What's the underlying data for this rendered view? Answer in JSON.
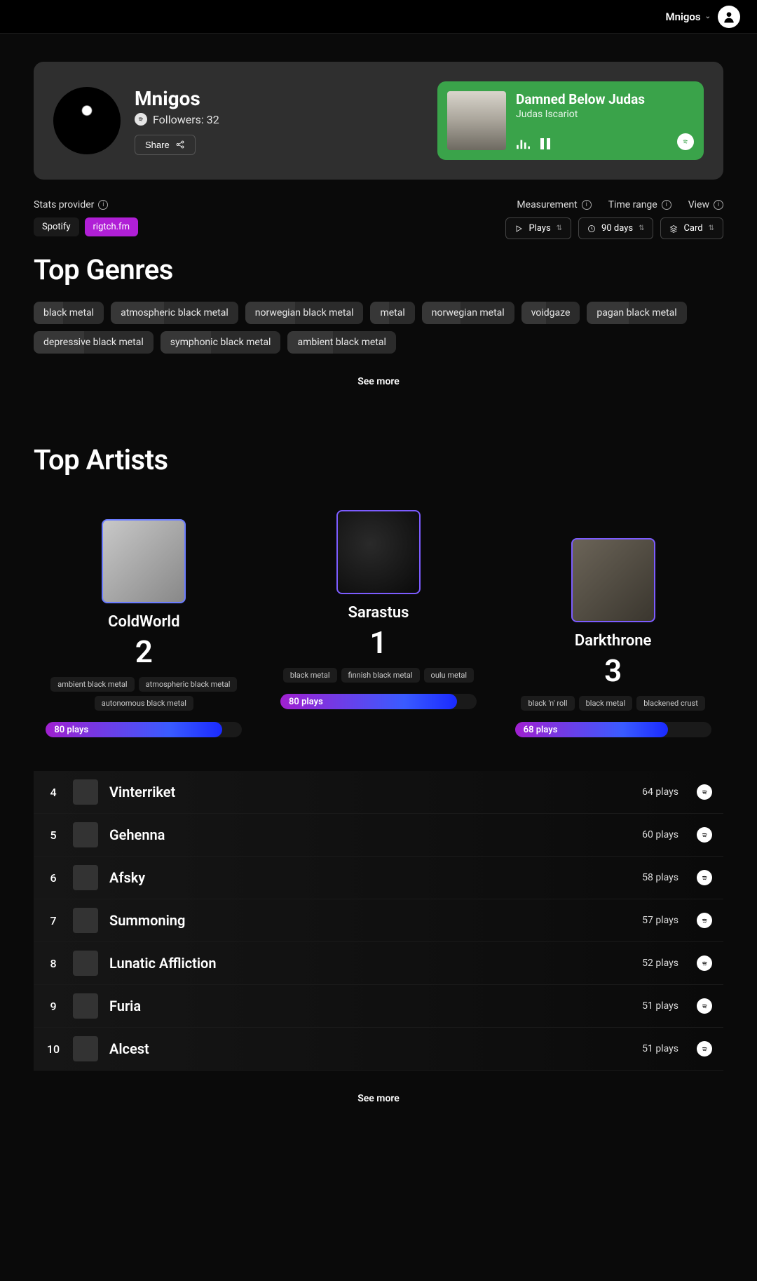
{
  "topbar": {
    "username": "Mnigos"
  },
  "profile": {
    "name": "Mnigos",
    "followers_label": "Followers: 32",
    "share_label": "Share"
  },
  "now_playing": {
    "title": "Damned Below Judas",
    "artist": "Judas Iscariot",
    "accent": "#3aa34a"
  },
  "controls": {
    "stats_provider_label": "Stats provider",
    "providers": [
      {
        "label": "Spotify",
        "active": false
      },
      {
        "label": "rigtch.fm",
        "active": true
      }
    ],
    "measurement_label": "Measurement",
    "time_range_label": "Time range",
    "view_label": "View",
    "measurement_value": "Plays",
    "time_range_value": "90 days",
    "view_value": "Card"
  },
  "top_genres": {
    "title": "Top Genres",
    "items": [
      "black metal",
      "atmospheric black metal",
      "norwegian black metal",
      "metal",
      "norwegian metal",
      "voidgaze",
      "pagan black metal",
      "depressive black metal",
      "symphonic black metal",
      "ambient black metal"
    ],
    "see_more": "See more"
  },
  "top_artists": {
    "title": "Top Artists",
    "podium": [
      {
        "rank": 1,
        "name": "Sarastus",
        "tags": [
          "black metal",
          "finnish black metal",
          "oulu metal"
        ],
        "plays_label": "80 plays",
        "bar_pct": 90
      },
      {
        "rank": 2,
        "name": "ColdWorld",
        "tags": [
          "ambient black metal",
          "atmospheric black metal",
          "autonomous black metal"
        ],
        "plays_label": "80 plays",
        "bar_pct": 90
      },
      {
        "rank": 3,
        "name": "Darkthrone",
        "tags": [
          "black 'n' roll",
          "black metal",
          "blackened crust"
        ],
        "plays_label": "68 plays",
        "bar_pct": 78
      }
    ],
    "rows": [
      {
        "rank": 4,
        "name": "Vinterriket",
        "plays": "64 plays"
      },
      {
        "rank": 5,
        "name": "Gehenna",
        "plays": "60 plays"
      },
      {
        "rank": 6,
        "name": "Afsky",
        "plays": "58 plays"
      },
      {
        "rank": 7,
        "name": "Summoning",
        "plays": "57 plays"
      },
      {
        "rank": 8,
        "name": "Lunatic Affliction",
        "plays": "52 plays"
      },
      {
        "rank": 9,
        "name": "Furia",
        "plays": "51 plays"
      },
      {
        "rank": 10,
        "name": "Alcest",
        "plays": "51 plays"
      }
    ],
    "see_more": "See more"
  }
}
